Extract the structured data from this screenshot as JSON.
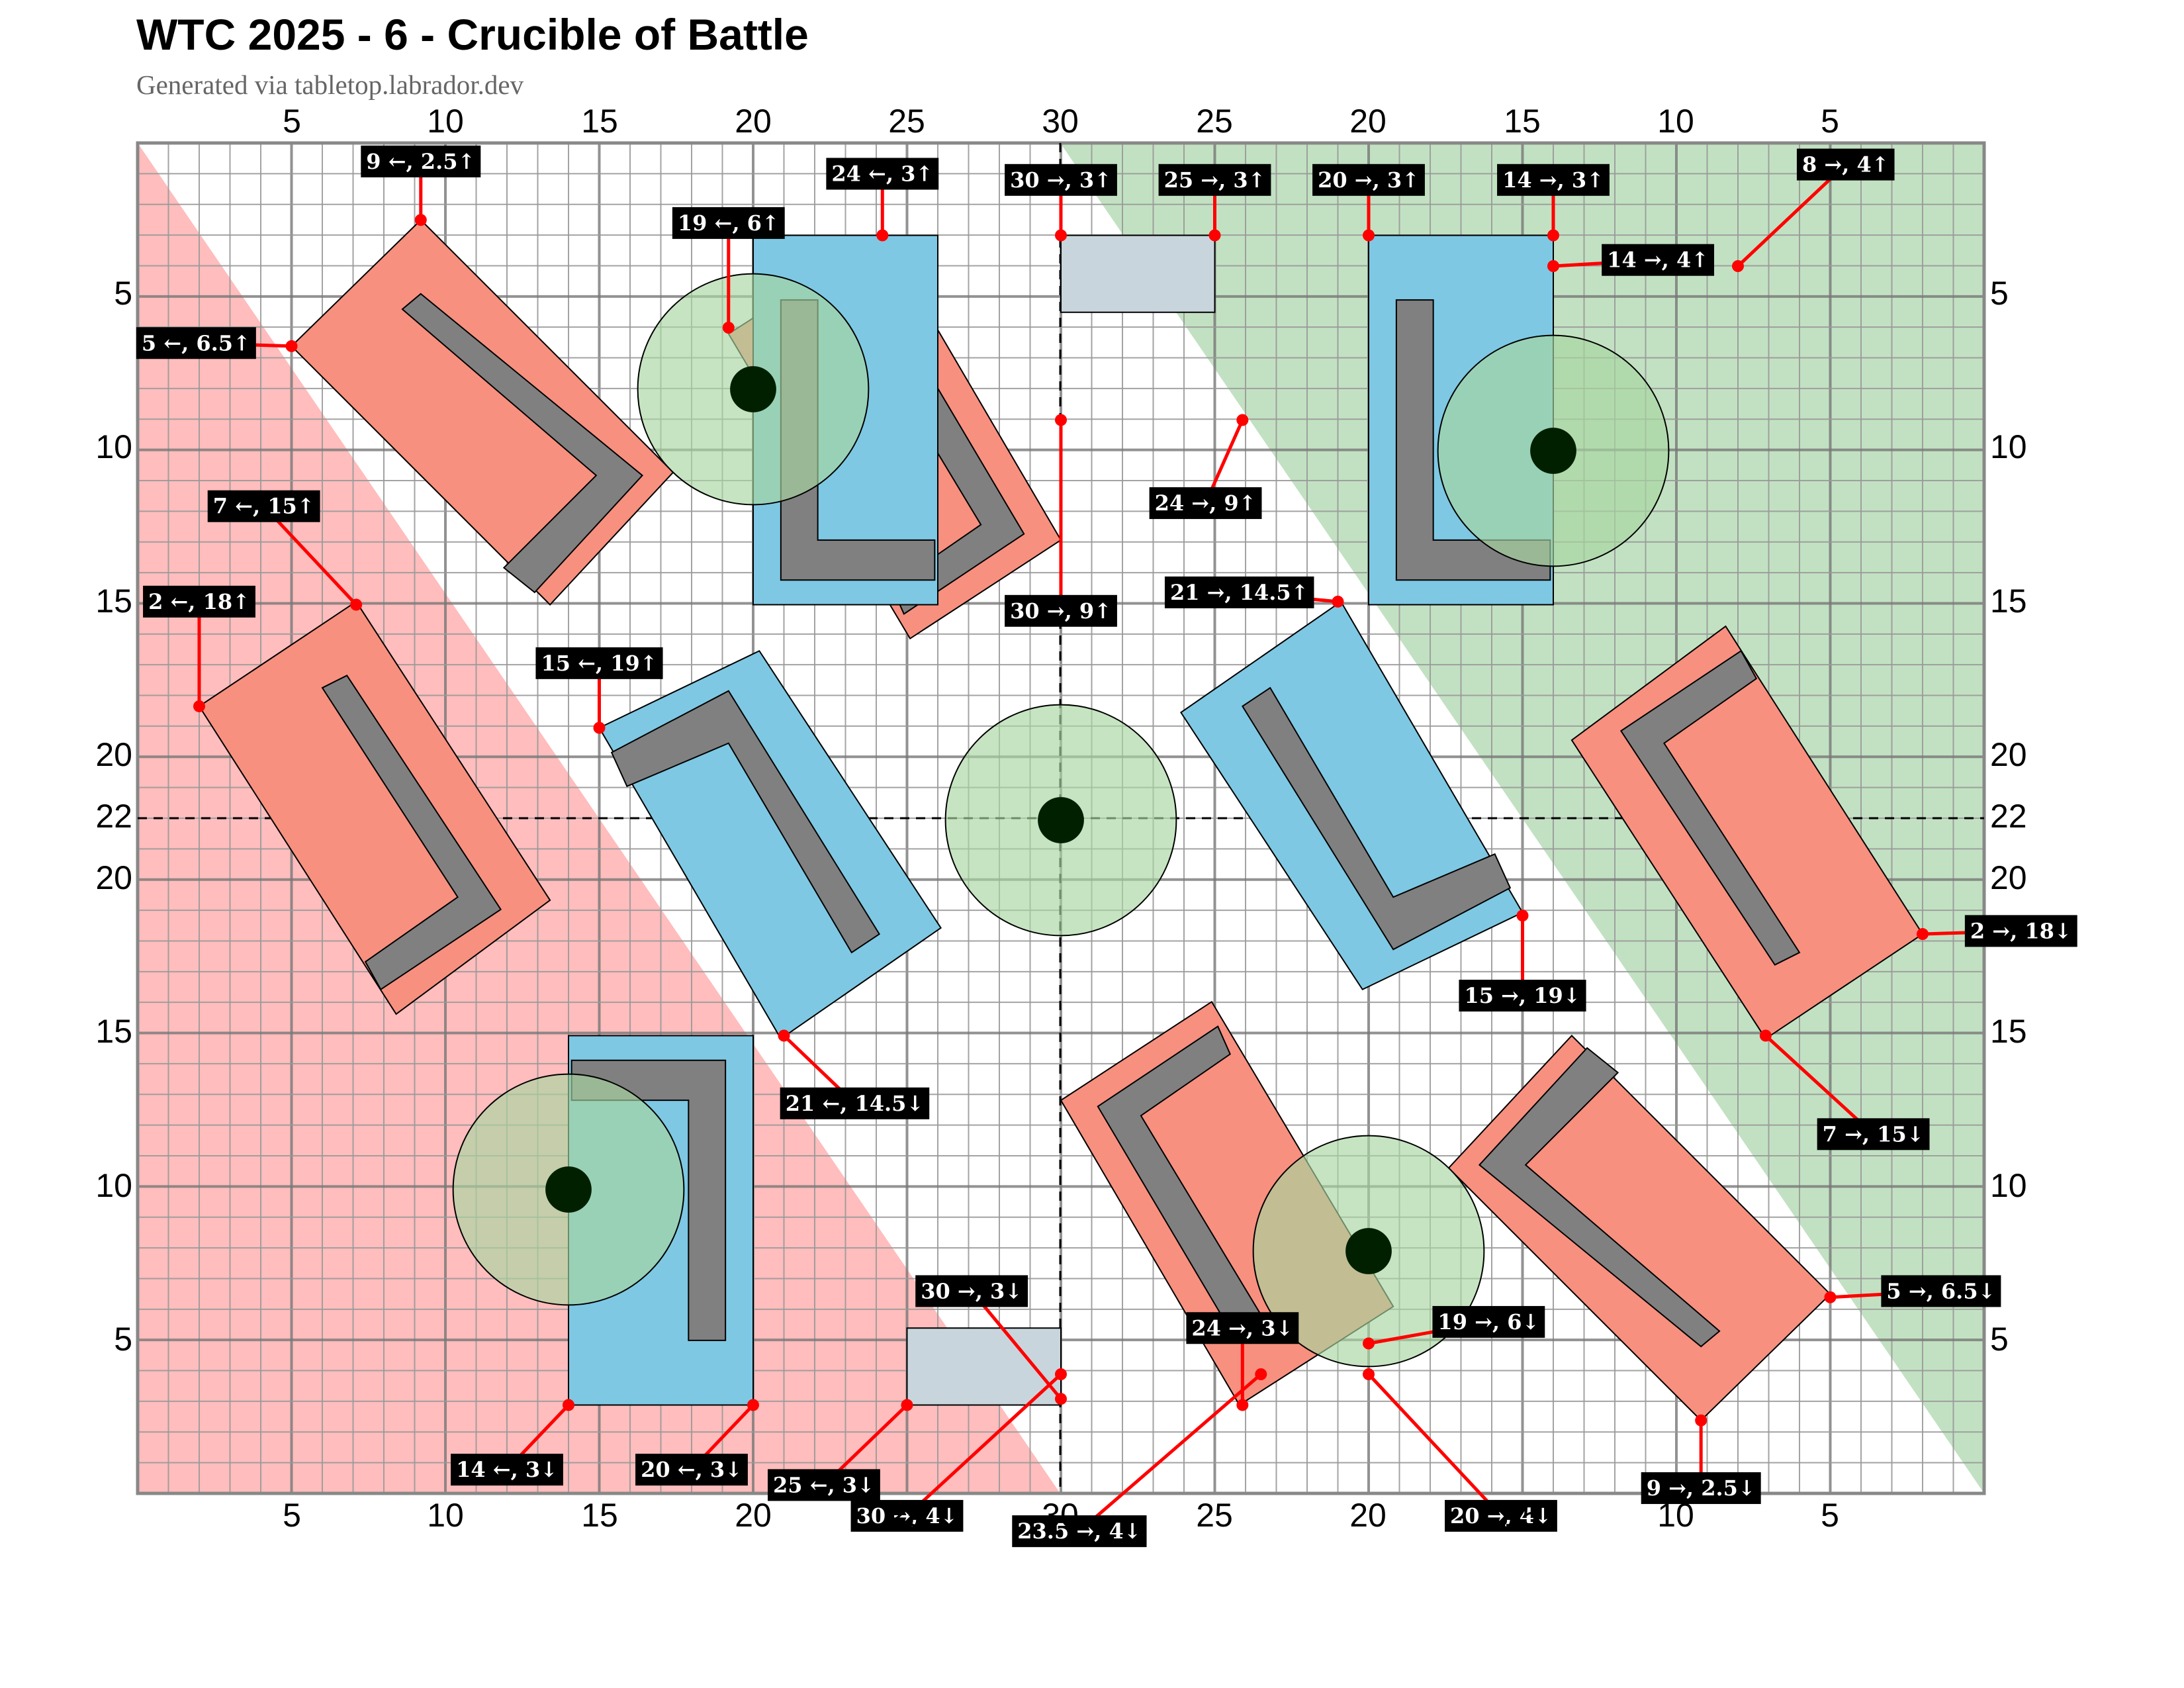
{
  "title": "WTC 2025 - 6 - Crucible of Battle",
  "subtitle": "Generated via tabletop.labrador.dev",
  "colors": {
    "red_zone": "#ff9999",
    "green_zone": "#8fc98f",
    "ruin_red": "#f7907f",
    "ruin_blue": "#7ec8e3",
    "ruin_wall": "#808080",
    "objective_circle": "#a8d5a0",
    "objective_marker": "#002000",
    "small_terrain": "#c9d5dc",
    "measure_line": "#ff0000",
    "label_bg": "#000000",
    "grid_minor": "#999999",
    "grid_major": "#777777"
  },
  "axes": {
    "top": [
      "5",
      "10",
      "15",
      "20",
      "25",
      "30",
      "25",
      "20",
      "15",
      "10",
      "5"
    ],
    "bottom": [
      "5",
      "10",
      "15",
      "20",
      "25",
      "30",
      "25",
      "20",
      "15",
      "10",
      "5"
    ],
    "left": [
      "5",
      "10",
      "15",
      "20",
      "22",
      "20",
      "15",
      "10",
      "5"
    ],
    "right": [
      "5",
      "10",
      "15",
      "20",
      "22",
      "20",
      "15",
      "10",
      "5"
    ]
  },
  "labels": [
    {
      "text": "9 ←, 2.5↑"
    },
    {
      "text": "5 ←, 6.5↑"
    },
    {
      "text": "19 ←, 6↑"
    },
    {
      "text": "24 ←, 3↑"
    },
    {
      "text": "30 →, 3↑"
    },
    {
      "text": "25 →, 3↑"
    },
    {
      "text": "20 →, 3↑"
    },
    {
      "text": "14 →, 3↑"
    },
    {
      "text": "14 →, 4↑"
    },
    {
      "text": "8 →, 4↑"
    },
    {
      "text": "24 →, 9↑"
    },
    {
      "text": "7 ←, 15↑"
    },
    {
      "text": "2 ←, 18↑"
    },
    {
      "text": "30 →, 9↑"
    },
    {
      "text": "21 →, 14.5↑"
    },
    {
      "text": "15 ←, 19↑"
    },
    {
      "text": "2 →, 18↓"
    },
    {
      "text": "15 →, 19↓"
    },
    {
      "text": "7 →, 15↓"
    },
    {
      "text": "21 ←, 14.5↓"
    },
    {
      "text": "5 →, 6.5↓"
    },
    {
      "text": "30 →, 3↓"
    },
    {
      "text": "24 →, 3↓"
    },
    {
      "text": "19 →, 6↓"
    },
    {
      "text": "14 ←, 3↓"
    },
    {
      "text": "20 ←, 3↓"
    },
    {
      "text": "25 ←, 3↓"
    },
    {
      "text": "30 →, 4↓"
    },
    {
      "text": "23.5 →, 4↓"
    },
    {
      "text": "20 →, 4↓"
    },
    {
      "text": "9 →, 2.5↓"
    }
  ]
}
